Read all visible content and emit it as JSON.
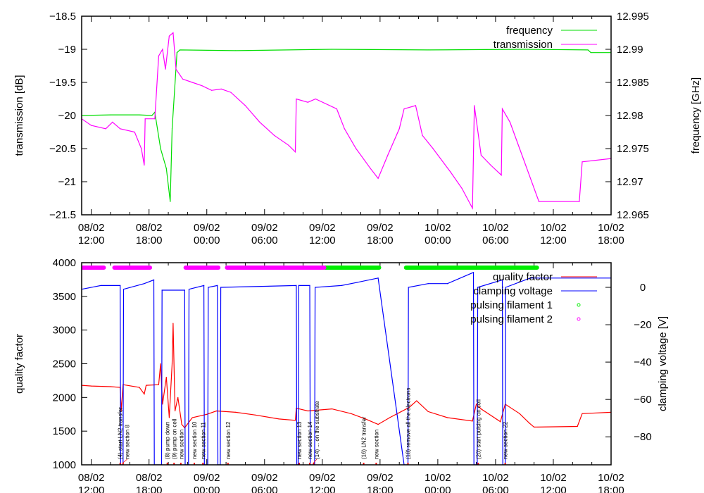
{
  "chart_data": [
    {
      "type": "line",
      "title": "",
      "ylabel": "transmission [dB]",
      "y2label": "frequency [GHz]",
      "x_unit": "hours since 08/02 12:00",
      "xlim": [
        -1,
        54
      ],
      "ylim": [
        -21.5,
        -18.5
      ],
      "y2lim": [
        12.965,
        12.995
      ],
      "x_ticks": [
        {
          "t": 0,
          "l1": "08/02",
          "l2": "12:00"
        },
        {
          "t": 6,
          "l1": "08/02",
          "l2": "18:00"
        },
        {
          "t": 12,
          "l1": "09/02",
          "l2": "00:00"
        },
        {
          "t": 18,
          "l1": "09/02",
          "l2": "06:00"
        },
        {
          "t": 24,
          "l1": "09/02",
          "l2": "12:00"
        },
        {
          "t": 30,
          "l1": "09/02",
          "l2": "18:00"
        },
        {
          "t": 36,
          "l1": "10/02",
          "l2": "00:00"
        },
        {
          "t": 42,
          "l1": "10/02",
          "l2": "06:00"
        },
        {
          "t": 48,
          "l1": "10/02",
          "l2": "12:00"
        },
        {
          "t": 54,
          "l1": "10/02",
          "l2": "18:00"
        }
      ],
      "y_ticks": [
        "-18.5",
        "-19",
        "-19.5",
        "-20",
        "-20.5",
        "-21",
        "-21.5"
      ],
      "y2_ticks": [
        "12.995",
        "12.99",
        "12.985",
        "12.98",
        "12.975",
        "12.97",
        "12.965"
      ],
      "legend_position": "top-right",
      "series": [
        {
          "name": "frequency",
          "axis": "y2",
          "color": "#00dd00",
          "points": [
            [
              -1,
              12.98
            ],
            [
              2,
              12.9801
            ],
            [
              5,
              12.9801
            ],
            [
              6.3,
              12.98
            ],
            [
              6.6,
              12.9805
            ],
            [
              7.2,
              12.975
            ],
            [
              7.8,
              12.972
            ],
            [
              8.2,
              12.967
            ],
            [
              8.4,
              12.978
            ],
            [
              8.9,
              12.9895
            ],
            [
              9.2,
              12.9899
            ],
            [
              15,
              12.9898
            ],
            [
              25,
              12.99
            ],
            [
              35,
              12.9899
            ],
            [
              45,
              12.99
            ],
            [
              51.6,
              12.9899
            ],
            [
              51.9,
              12.9895
            ],
            [
              54,
              12.9895
            ]
          ]
        },
        {
          "name": "transmission",
          "axis": "y",
          "color": "#ff00ff",
          "points": [
            [
              -1,
              -20.05
            ],
            [
              0,
              -20.15
            ],
            [
              1.5,
              -20.2
            ],
            [
              2.2,
              -20.1
            ],
            [
              3,
              -20.2
            ],
            [
              4.5,
              -20.25
            ],
            [
              5.2,
              -20.5
            ],
            [
              5.5,
              -20.75
            ],
            [
              5.6,
              -20.05
            ],
            [
              6.6,
              -20.05
            ],
            [
              7,
              -19.1
            ],
            [
              7.4,
              -19.0
            ],
            [
              7.7,
              -19.3
            ],
            [
              8.1,
              -18.8
            ],
            [
              8.5,
              -18.75
            ],
            [
              8.8,
              -19.3
            ],
            [
              9.5,
              -19.45
            ],
            [
              10.5,
              -19.5
            ],
            [
              11.5,
              -19.55
            ],
            [
              12.5,
              -19.62
            ],
            [
              13.5,
              -19.6
            ],
            [
              14.5,
              -19.65
            ],
            [
              16,
              -19.85
            ],
            [
              17.5,
              -20.1
            ],
            [
              19,
              -20.3
            ],
            [
              20.5,
              -20.45
            ],
            [
              21.2,
              -20.55
            ],
            [
              21.3,
              -19.75
            ],
            [
              22.5,
              -19.8
            ],
            [
              23.3,
              -19.75
            ],
            [
              25.5,
              -19.9
            ],
            [
              26.3,
              -20.2
            ],
            [
              27.5,
              -20.5
            ],
            [
              29,
              -20.8
            ],
            [
              29.8,
              -20.95
            ],
            [
              30.8,
              -20.6
            ],
            [
              32,
              -20.2
            ],
            [
              32.5,
              -19.9
            ],
            [
              33.7,
              -19.85
            ],
            [
              34.4,
              -20.3
            ],
            [
              35.5,
              -20.5
            ],
            [
              37.3,
              -20.85
            ],
            [
              38.5,
              -21.1
            ],
            [
              39.6,
              -21.4
            ],
            [
              39.8,
              -19.85
            ],
            [
              40.5,
              -20.6
            ],
            [
              41.5,
              -20.75
            ],
            [
              42.6,
              -20.9
            ],
            [
              42.7,
              -19.9
            ],
            [
              43.5,
              -20.1
            ],
            [
              44.5,
              -20.5
            ],
            [
              45.5,
              -20.9
            ],
            [
              46.5,
              -21.3
            ],
            [
              50.7,
              -21.3
            ],
            [
              51,
              -20.7
            ],
            [
              54,
              -20.65
            ]
          ]
        }
      ]
    },
    {
      "type": "line",
      "title": "",
      "ylabel": "quality factor",
      "y2label": "clamping voltage [V]",
      "x_unit": "hours since 08/02 12:00",
      "xlim": [
        -1,
        54
      ],
      "ylim": [
        1000,
        4000
      ],
      "y2lim": [
        -95,
        13.2
      ],
      "y_ticks": [
        "4000",
        "3500",
        "3000",
        "2500",
        "2000",
        "1500",
        "1000"
      ],
      "y2_ticks": [
        "0",
        "-20",
        "-40",
        "-60",
        "-80"
      ],
      "legend_position": "top-right",
      "series": [
        {
          "name": "quality factor",
          "axis": "y",
          "color": "#ff0000",
          "points": [
            [
              -1,
              2180
            ],
            [
              0,
              2170
            ],
            [
              2,
              2160
            ],
            [
              3,
              2150
            ],
            [
              3.1,
              1800
            ],
            [
              3.3,
              2190
            ],
            [
              5,
              2150
            ],
            [
              5.5,
              2050
            ],
            [
              5.7,
              2180
            ],
            [
              7,
              2190
            ],
            [
              7.2,
              2500
            ],
            [
              7.4,
              1900
            ],
            [
              7.8,
              2300
            ],
            [
              8.1,
              1700
            ],
            [
              8.4,
              2500
            ],
            [
              8.5,
              3100
            ],
            [
              8.7,
              1800
            ],
            [
              9,
              2000
            ],
            [
              9.4,
              1600
            ],
            [
              9.7,
              1550
            ],
            [
              10.5,
              1700
            ],
            [
              12,
              1750
            ],
            [
              13,
              1800
            ],
            [
              15,
              1780
            ],
            [
              17,
              1740
            ],
            [
              19.5,
              1680
            ],
            [
              21.2,
              1660
            ],
            [
              21.3,
              1840
            ],
            [
              22.5,
              1800
            ],
            [
              25,
              1830
            ],
            [
              27,
              1760
            ],
            [
              28.5,
              1680
            ],
            [
              29.8,
              1600
            ],
            [
              31,
              1700
            ],
            [
              33,
              1850
            ],
            [
              33.8,
              1950
            ],
            [
              35,
              1790
            ],
            [
              37,
              1700
            ],
            [
              39.6,
              1650
            ],
            [
              40,
              1900
            ],
            [
              40.5,
              1830
            ],
            [
              42.5,
              1640
            ],
            [
              43,
              1900
            ],
            [
              44.5,
              1760
            ],
            [
              45.5,
              1620
            ],
            [
              46,
              1560
            ],
            [
              50.5,
              1570
            ],
            [
              51,
              1760
            ],
            [
              54,
              1780
            ]
          ]
        },
        {
          "name": "clamping voltage",
          "axis": "y2",
          "color": "#0000ff",
          "points": [
            [
              -1,
              -1
            ],
            [
              1,
              1
            ],
            [
              3,
              1
            ],
            [
              3.05,
              -95
            ],
            [
              3.3,
              -95
            ],
            [
              3.35,
              -1
            ],
            [
              5.5,
              2
            ],
            [
              6.5,
              4
            ],
            [
              6.55,
              -95
            ],
            [
              7.3,
              -95
            ],
            [
              7.35,
              -1.5
            ],
            [
              9.7,
              -1.5
            ],
            [
              9.75,
              -95
            ],
            [
              10.1,
              -95
            ],
            [
              10.15,
              -1
            ],
            [
              11.7,
              1
            ],
            [
              11.75,
              -95
            ],
            [
              12.1,
              -95
            ],
            [
              12.15,
              0
            ],
            [
              13.1,
              1
            ],
            [
              13.15,
              -95
            ],
            [
              13.4,
              -95
            ],
            [
              13.45,
              0
            ],
            [
              21.3,
              1
            ],
            [
              21.35,
              -95
            ],
            [
              21.5,
              -95
            ],
            [
              21.55,
              1
            ],
            [
              22.7,
              1
            ],
            [
              22.75,
              -95
            ],
            [
              23.2,
              -95
            ],
            [
              23.25,
              0
            ],
            [
              26,
              1
            ],
            [
              27,
              2
            ],
            [
              29.8,
              5
            ],
            [
              32.5,
              -95
            ],
            [
              32.9,
              -95
            ],
            [
              32.95,
              0
            ],
            [
              35,
              2
            ],
            [
              37,
              2
            ],
            [
              39.7,
              8
            ],
            [
              39.75,
              -95
            ],
            [
              40.1,
              -95
            ],
            [
              40.15,
              0
            ],
            [
              42.7,
              4
            ],
            [
              42.75,
              -95
            ],
            [
              43,
              -95
            ],
            [
              43.05,
              0
            ],
            [
              45.6,
              5
            ],
            [
              54,
              5
            ]
          ]
        }
      ],
      "pulsing": [
        {
          "name": "pulsing filament 1",
          "color": "#00ee00",
          "intervals": [
            [
              24.2,
              29.9
            ],
            [
              32.7,
              46.3
            ]
          ]
        },
        {
          "name": "pulsing filament 2",
          "color": "#ff00ff",
          "intervals": [
            [
              -1.1,
              1.3
            ],
            [
              2.4,
              6.1
            ],
            [
              9.8,
              11.2
            ],
            [
              11.3,
              13.2
            ],
            [
              14.1,
              24.2
            ]
          ]
        }
      ],
      "annotations": [
        {
          "t": 3.0,
          "text": "(4) start LN2 transfer"
        },
        {
          "t": 3.3,
          "text": "new section 8"
        },
        {
          "t": 7.9,
          "text": "(8) pump down"
        },
        {
          "t": 8.6,
          "text": "(9) pump on cell"
        },
        {
          "t": 9.3,
          "text": "new section"
        },
        {
          "t": 10.7,
          "text": "new section 10"
        },
        {
          "t": 11.6,
          "text": "new section 11"
        },
        {
          "t": 14.2,
          "text": "new section 12"
        },
        {
          "t": 21.6,
          "text": "new section 13"
        },
        {
          "t": 22.7,
          "text": "new section 14"
        },
        {
          "t": 23.1,
          "text": "(14) ... on the substrate"
        },
        {
          "t": 28.3,
          "text": "(16) LN2 transfer"
        },
        {
          "t": 29.6,
          "text": "new section"
        },
        {
          "t": 32.9,
          "text": "(18) remove all the electrons"
        },
        {
          "t": 40.2,
          "text": "(20) start pulsing on cell"
        },
        {
          "t": 43.0,
          "text": "new section 22"
        }
      ]
    }
  ]
}
